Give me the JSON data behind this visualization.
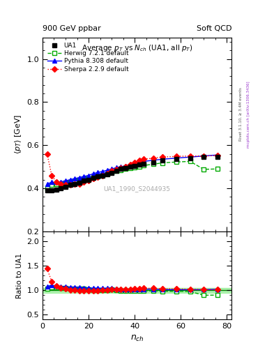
{
  "title_top_left": "900 GeV ppbar",
  "title_top_right": "Soft QCD",
  "plot_title": "Average p_{T} vs N_{ch} (UA1, all p_{T})",
  "ylabel_main": "\\langle p_{T} \\rangle [GeV]",
  "ylabel_ratio": "Ratio to UA1",
  "xlabel": "n_{ch}",
  "watermark": "UA1_1990_S2044935",
  "right_label_top": "Rivet 3.1.10, ≥ 3.4M events",
  "right_label_bot": "mcplots.cern.ch [arXiv:1306.3436]",
  "UA1_x": [
    2,
    4,
    6,
    8,
    10,
    12,
    14,
    16,
    18,
    20,
    22,
    24,
    26,
    28,
    30,
    32,
    34,
    36,
    38,
    40,
    42,
    44,
    48,
    52,
    58,
    64,
    70,
    76
  ],
  "UA1_y": [
    0.39,
    0.39,
    0.395,
    0.4,
    0.405,
    0.415,
    0.42,
    0.425,
    0.435,
    0.44,
    0.45,
    0.455,
    0.46,
    0.465,
    0.47,
    0.48,
    0.49,
    0.495,
    0.5,
    0.505,
    0.51,
    0.515,
    0.52,
    0.53,
    0.535,
    0.54,
    0.545,
    0.545
  ],
  "UA1_color": "#000000",
  "Herwig_x": [
    2,
    4,
    6,
    8,
    10,
    12,
    14,
    16,
    18,
    20,
    22,
    24,
    26,
    28,
    30,
    32,
    34,
    36,
    38,
    40,
    42,
    44,
    48,
    52,
    58,
    64,
    70,
    76
  ],
  "Herwig_y": [
    0.4,
    0.415,
    0.42,
    0.42,
    0.425,
    0.43,
    0.435,
    0.44,
    0.445,
    0.445,
    0.452,
    0.458,
    0.462,
    0.468,
    0.475,
    0.48,
    0.485,
    0.49,
    0.494,
    0.498,
    0.502,
    0.506,
    0.512,
    0.518,
    0.522,
    0.525,
    0.488,
    0.49
  ],
  "Herwig_color": "#00aa00",
  "Pythia_x": [
    2,
    4,
    6,
    8,
    10,
    12,
    14,
    16,
    18,
    20,
    22,
    24,
    26,
    28,
    30,
    32,
    34,
    36,
    38,
    40,
    42,
    44,
    48,
    52,
    58,
    64,
    70,
    76
  ],
  "Pythia_y": [
    0.42,
    0.428,
    0.428,
    0.43,
    0.435,
    0.44,
    0.445,
    0.45,
    0.455,
    0.46,
    0.468,
    0.474,
    0.478,
    0.484,
    0.49,
    0.496,
    0.5,
    0.505,
    0.51,
    0.515,
    0.52,
    0.525,
    0.53,
    0.535,
    0.54,
    0.545,
    0.55,
    0.555
  ],
  "Pythia_color": "#0000ff",
  "Sherpa_x": [
    2,
    4,
    6,
    8,
    10,
    12,
    14,
    16,
    18,
    20,
    22,
    24,
    26,
    28,
    30,
    32,
    34,
    36,
    38,
    40,
    42,
    44,
    48,
    52,
    58,
    64,
    70,
    76
  ],
  "Sherpa_y": [
    0.56,
    0.46,
    0.43,
    0.42,
    0.415,
    0.415,
    0.418,
    0.42,
    0.428,
    0.435,
    0.445,
    0.452,
    0.46,
    0.468,
    0.48,
    0.488,
    0.495,
    0.502,
    0.51,
    0.52,
    0.528,
    0.535,
    0.54,
    0.545,
    0.548,
    0.55,
    0.55,
    0.552
  ],
  "Sherpa_color": "#ff0000",
  "xlim": [
    0,
    82
  ],
  "ylim_main": [
    0.2,
    1.1
  ],
  "ylim_ratio": [
    0.4,
    2.2
  ],
  "yticks_main": [
    0.2,
    0.4,
    0.6,
    0.8,
    1.0
  ],
  "yticks_ratio": [
    0.5,
    1.0,
    1.5,
    2.0
  ],
  "xticks": [
    0,
    20,
    40,
    60,
    80
  ]
}
